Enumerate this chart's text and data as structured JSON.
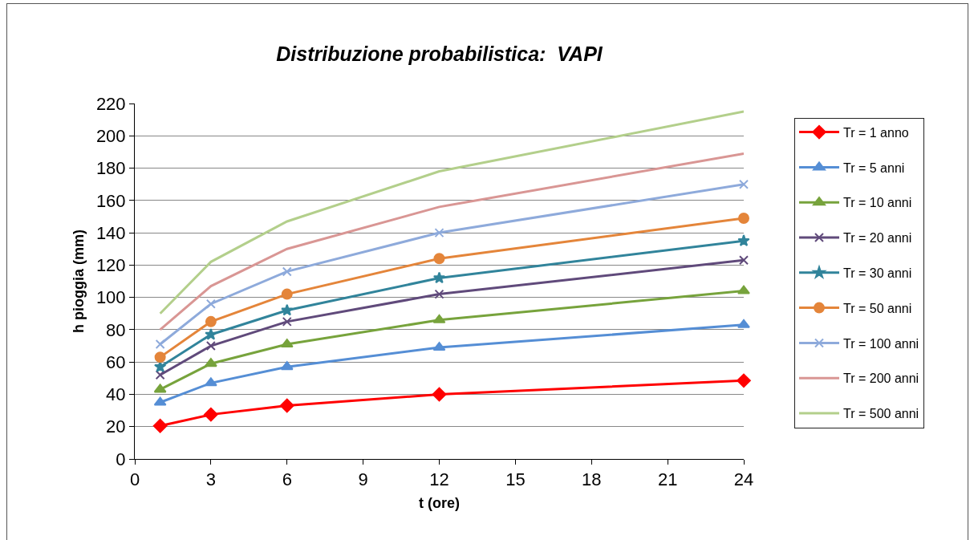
{
  "chart_data": {
    "type": "line",
    "title": "Distribuzione probabilistica:  VAPI",
    "xlabel": "t (ore)",
    "ylabel": "h pioggia (mm)",
    "x": [
      1,
      3,
      6,
      12,
      24
    ],
    "series": [
      {
        "name": "Tr = 1 anno",
        "color": "#ff0000",
        "marker": "diamond",
        "values": [
          20.5,
          27.5,
          33,
          40,
          48.5
        ]
      },
      {
        "name": "Tr = 5 anni",
        "color": "#558ed5",
        "marker": "triangle",
        "values": [
          35,
          47,
          57,
          69,
          83
        ]
      },
      {
        "name": "Tr = 10 anni",
        "color": "#77a33c",
        "marker": "triangle",
        "values": [
          43,
          59,
          71,
          86,
          104
        ]
      },
      {
        "name": "Tr = 20 anni",
        "color": "#604a7b",
        "marker": "cross",
        "values": [
          52,
          70,
          85,
          102,
          123
        ]
      },
      {
        "name": "Tr = 30 anni",
        "color": "#31849b",
        "marker": "star",
        "values": [
          57,
          77,
          92,
          112,
          135
        ]
      },
      {
        "name": "Tr = 50 anni",
        "color": "#e4853a",
        "marker": "circle",
        "values": [
          63,
          85,
          102,
          124,
          149
        ]
      },
      {
        "name": "Tr = 100 anni",
        "color": "#8eaadb",
        "marker": "cross",
        "values": [
          71,
          96,
          116,
          140,
          170
        ]
      },
      {
        "name": "Tr = 200 anni",
        "color": "#d99694",
        "marker": "none",
        "values": [
          80,
          107,
          130,
          156,
          189
        ]
      },
      {
        "name": "Tr = 500 anni",
        "color": "#b3cf8b",
        "marker": "none",
        "values": [
          90,
          122,
          147,
          178,
          215
        ]
      }
    ],
    "xlim": [
      0,
      24
    ],
    "xticks": [
      0,
      3,
      6,
      9,
      12,
      15,
      18,
      21,
      24
    ],
    "ylim": [
      0,
      220
    ],
    "yticks": [
      0,
      20,
      40,
      60,
      80,
      100,
      120,
      140,
      160,
      180,
      200,
      220
    ],
    "grid": "y",
    "legend": "right",
    "line_style": "solid"
  }
}
